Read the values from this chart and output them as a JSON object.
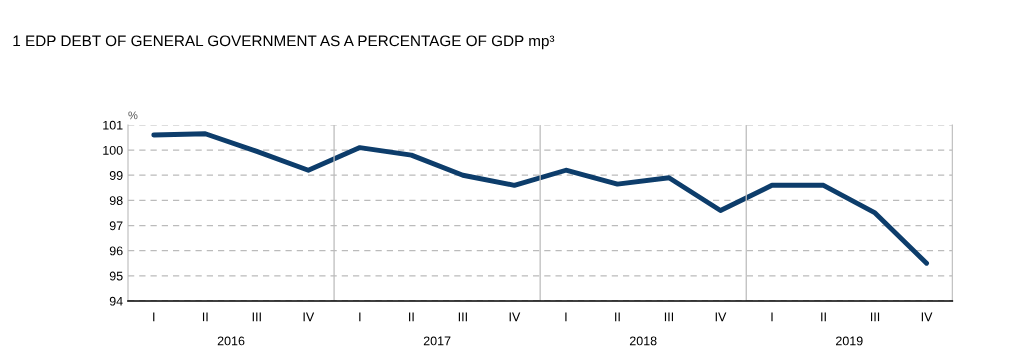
{
  "chart_data": {
    "type": "line",
    "title": "1 EDP DEBT OF GENERAL GOVERNMENT AS A PERCENTAGE OF GDP mp³",
    "ylabel": "%",
    "categories": [
      "I",
      "II",
      "III",
      "IV",
      "I",
      "II",
      "III",
      "IV",
      "I",
      "II",
      "III",
      "IV",
      "I",
      "II",
      "III",
      "IV"
    ],
    "series": [
      {
        "color": "#0d3d6b",
        "values": [
          100.6,
          100.65,
          99.95,
          99.2,
          100.1,
          99.8,
          99.0,
          98.6,
          99.2,
          98.65,
          98.9,
          97.6,
          98.6,
          98.6,
          97.5,
          95.5
        ]
      }
    ],
    "annotations": [
      "2016",
      "2017",
      "2018",
      "2019"
    ],
    "ylim": [
      94,
      101
    ],
    "yticks": [
      94,
      95,
      96,
      97,
      98,
      99,
      100,
      101
    ],
    "grid": "y",
    "line_style": "solid",
    "marker": "none"
  }
}
